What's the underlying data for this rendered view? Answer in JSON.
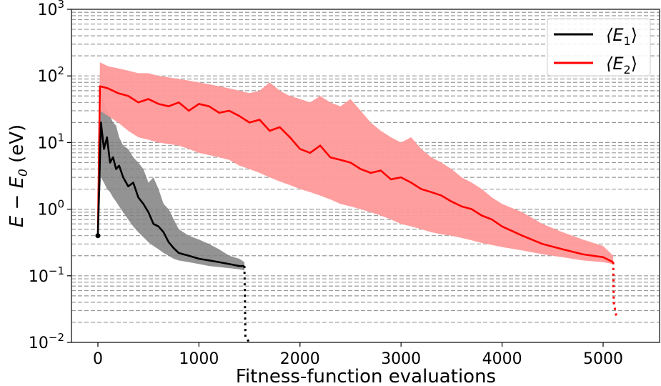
{
  "chart_data": {
    "type": "line",
    "title": "",
    "xlabel": "Fitness-function evaluations",
    "ylabel": "E − E0 (eV)",
    "ylabel_parts": {
      "main": "E − E",
      "sub": "0",
      "unit": " (eV)"
    },
    "yscale": "log",
    "xlim": [
      -260,
      5560
    ],
    "ylim": [
      0.01,
      1000
    ],
    "x_ticks": [
      0,
      1000,
      2000,
      3000,
      4000,
      5000
    ],
    "x_tick_labels": [
      "0",
      "1000",
      "2000",
      "3000",
      "4000",
      "5000"
    ],
    "y_ticks": [
      0.01,
      0.1,
      1,
      10,
      100,
      1000
    ],
    "y_tick_labels": [
      {
        "base": "10",
        "exp": "−2"
      },
      {
        "base": "10",
        "exp": "−1"
      },
      {
        "base": "10",
        "exp": "0"
      },
      {
        "base": "10",
        "exp": "1"
      },
      {
        "base": "10",
        "exp": "2"
      },
      {
        "base": "10",
        "exp": "3"
      }
    ],
    "grid": {
      "y_minor_dashed": true,
      "x": false
    },
    "legend": {
      "position": "upper right",
      "entries": [
        {
          "label_main": "⟨E",
          "label_sub": "1",
          "label_end": "⟩",
          "color": "#000000"
        },
        {
          "label_main": "⟨E",
          "label_sub": "2",
          "label_end": "⟩",
          "color": "#ff0000"
        }
      ]
    },
    "series": [
      {
        "name": "⟨E1⟩",
        "color": "#000000",
        "band_color": "#808080",
        "start_point": [
          0,
          0.4
        ],
        "x": [
          0,
          30,
          60,
          90,
          120,
          150,
          180,
          210,
          250,
          300,
          350,
          400,
          450,
          500,
          550,
          600,
          650,
          700,
          750,
          800,
          900,
          1000,
          1100,
          1200,
          1300,
          1400,
          1450
        ],
        "mean": [
          0.4,
          20,
          8,
          12,
          5,
          6,
          4,
          4.5,
          3,
          2.2,
          2.5,
          1.5,
          1.2,
          0.9,
          0.6,
          0.55,
          0.45,
          0.32,
          0.26,
          0.22,
          0.2,
          0.18,
          0.17,
          0.16,
          0.15,
          0.14,
          0.14
        ],
        "upper": [
          0.4,
          70,
          40,
          30,
          25,
          20,
          18,
          12,
          9,
          8,
          6,
          5,
          4,
          2.5,
          3,
          2,
          1.2,
          1.0,
          0.7,
          0.5,
          0.4,
          0.35,
          0.3,
          0.25,
          0.2,
          0.18,
          0.16
        ],
        "lower": [
          0.4,
          3,
          2.5,
          2,
          1.8,
          1.5,
          1.3,
          1.1,
          0.9,
          0.7,
          0.55,
          0.45,
          0.38,
          0.32,
          0.28,
          0.25,
          0.22,
          0.2,
          0.18,
          0.17,
          0.16,
          0.15,
          0.14,
          0.135,
          0.13,
          0.125,
          0.12
        ],
        "dotted_drop": {
          "x": [
            1450,
            1460,
            1500
          ],
          "y": [
            0.14,
            0.012,
            0.009
          ]
        }
      },
      {
        "name": "⟨E2⟩",
        "color": "#ff0000",
        "band_color": "#ff9999",
        "start_point": [
          0,
          0.4
        ],
        "x": [
          0,
          20,
          100,
          200,
          300,
          400,
          500,
          600,
          700,
          800,
          900,
          1000,
          1100,
          1200,
          1300,
          1400,
          1500,
          1600,
          1700,
          1800,
          1900,
          2000,
          2100,
          2200,
          2300,
          2400,
          2500,
          2600,
          2700,
          2800,
          2900,
          3000,
          3100,
          3200,
          3300,
          3400,
          3500,
          3600,
          3700,
          3800,
          3900,
          4000,
          4200,
          4400,
          4600,
          4800,
          5000,
          5100
        ],
        "mean": [
          0.4,
          70,
          65,
          55,
          50,
          40,
          45,
          38,
          35,
          40,
          30,
          38,
          35,
          28,
          30,
          25,
          20,
          22,
          15,
          17,
          12,
          8,
          7,
          9,
          6,
          5.5,
          5,
          4,
          3.5,
          3.8,
          2.8,
          3,
          2.5,
          2,
          1.8,
          1.6,
          1.3,
          1.1,
          1.0,
          0.8,
          0.7,
          0.55,
          0.4,
          0.3,
          0.25,
          0.21,
          0.19,
          0.16
        ],
        "upper": [
          0.4,
          160,
          140,
          130,
          120,
          110,
          110,
          100,
          95,
          90,
          85,
          80,
          75,
          70,
          65,
          60,
          55,
          60,
          80,
          60,
          50,
          45,
          40,
          50,
          40,
          35,
          45,
          30,
          20,
          15,
          12,
          10,
          12,
          8,
          6,
          5,
          4,
          3,
          2.5,
          2,
          1.5,
          1.2,
          0.9,
          0.6,
          0.45,
          0.35,
          0.28,
          0.2
        ],
        "lower": [
          0.4,
          30,
          25,
          20,
          15,
          12,
          11,
          10,
          9.5,
          9,
          8,
          7,
          6.5,
          6,
          5.5,
          4.5,
          4,
          3.5,
          3,
          2.6,
          2.3,
          2.0,
          1.8,
          1.6,
          1.4,
          1.2,
          1.1,
          1.0,
          0.9,
          0.8,
          0.7,
          0.6,
          0.55,
          0.5,
          0.45,
          0.42,
          0.4,
          0.37,
          0.34,
          0.31,
          0.29,
          0.27,
          0.24,
          0.21,
          0.19,
          0.17,
          0.16,
          0.15
        ],
        "dotted_drop": {
          "x": [
            5100,
            5105,
            5120,
            5130
          ],
          "y": [
            0.16,
            0.04,
            0.03,
            0.025
          ]
        }
      }
    ]
  }
}
